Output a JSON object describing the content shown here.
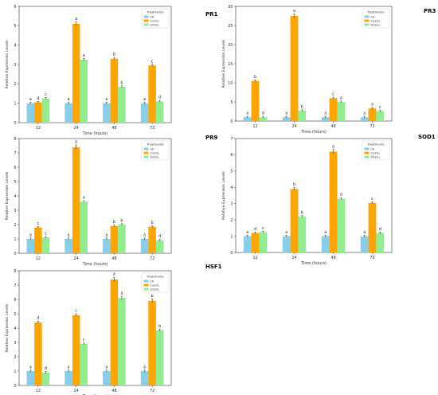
{
  "colors": {
    "CK": "#87ceeb",
    "CuSO4": "#ffa500",
    "ZnSO4": "#90ee90"
  },
  "chart_data": [
    {
      "type": "bar",
      "title": "PR1",
      "xlabel": "Time (hours)",
      "ylabel": "Relative Expression Levels",
      "categories": [
        "12",
        "24",
        "48",
        "72"
      ],
      "ylim": [
        0,
        6
      ],
      "yticks": [
        0,
        1,
        2,
        3,
        4,
        5,
        6
      ],
      "legend": {
        "title": "Treatments",
        "position": "top-right"
      },
      "series": [
        {
          "name": "CK",
          "values": [
            1.0,
            1.0,
            1.0,
            1.0
          ],
          "letters": [
            "a",
            "a",
            "a",
            "a"
          ]
        },
        {
          "name": "CuSO₄",
          "values": [
            1.05,
            5.1,
            3.3,
            2.95
          ],
          "letters": [
            "d",
            "a",
            "b",
            "c"
          ]
        },
        {
          "name": "ZnSO₄",
          "values": [
            1.25,
            3.25,
            1.85,
            1.1
          ],
          "letters": [
            "c",
            "a",
            "b",
            "d"
          ]
        }
      ]
    },
    {
      "type": "bar",
      "title": "PR3",
      "xlabel": "Time (hours)",
      "ylabel": "Relative Expression Levels",
      "categories": [
        "12",
        "24",
        "48",
        "72"
      ],
      "ylim": [
        0,
        30
      ],
      "yticks": [
        0,
        5,
        10,
        15,
        20,
        25,
        30
      ],
      "legend": {
        "title": "Treatments",
        "position": "top-right"
      },
      "series": [
        {
          "name": "CK",
          "values": [
            1.0,
            1.0,
            1.0,
            1.0
          ],
          "letters": [
            "a",
            "a",
            "a",
            "a"
          ]
        },
        {
          "name": "CuSO₄",
          "values": [
            10.5,
            27.5,
            6.0,
            3.3
          ],
          "letters": [
            "b",
            "a",
            "c",
            "a"
          ]
        },
        {
          "name": "ZnSO₄",
          "values": [
            1.0,
            2.7,
            5.0,
            2.6
          ],
          "letters": [
            "d",
            "b",
            "a",
            "c"
          ]
        }
      ]
    },
    {
      "type": "bar",
      "title": "PR9",
      "xlabel": "Time (hours)",
      "ylabel": "Relative Expression Levels",
      "categories": [
        "12",
        "24",
        "48",
        "72"
      ],
      "ylim": [
        0,
        8
      ],
      "yticks": [
        0,
        1,
        2,
        3,
        4,
        5,
        6,
        7,
        8
      ],
      "legend": {
        "title": "Treatments",
        "position": "top-right"
      },
      "series": [
        {
          "name": "CK",
          "values": [
            1.0,
            1.0,
            1.0,
            1.0
          ],
          "letters": [
            "a",
            "a",
            "a",
            "a"
          ]
        },
        {
          "name": "CuSO₄",
          "values": [
            1.8,
            7.4,
            1.9,
            1.85
          ],
          "letters": [
            "c",
            "a",
            "b",
            "b"
          ]
        },
        {
          "name": "ZnSO₄",
          "values": [
            1.1,
            3.6,
            2.0,
            0.9
          ],
          "letters": [
            "c",
            "a",
            "b",
            "d"
          ]
        }
      ]
    },
    {
      "type": "bar",
      "title": "SOD1",
      "xlabel": "Time (hours)",
      "ylabel": "Relative Expression Levels",
      "categories": [
        "12",
        "24",
        "48",
        "72"
      ],
      "ylim": [
        0,
        7
      ],
      "yticks": [
        0,
        1,
        2,
        3,
        4,
        5,
        6,
        7
      ],
      "legend": {
        "title": "Treatments",
        "position": "top-right"
      },
      "series": [
        {
          "name": "CK",
          "values": [
            1.0,
            1.0,
            1.0,
            1.0
          ],
          "letters": [
            "a",
            "a",
            "a",
            "a"
          ]
        },
        {
          "name": "CuSO₄",
          "values": [
            1.2,
            3.9,
            6.2,
            3.05
          ],
          "letters": [
            "d",
            "b",
            "a",
            "c"
          ]
        },
        {
          "name": "ZnSO₄",
          "values": [
            1.25,
            2.2,
            3.3,
            1.2
          ],
          "letters": [
            "c",
            "b",
            "a",
            "d"
          ]
        }
      ]
    },
    {
      "type": "bar",
      "title": "HSF1",
      "xlabel": "Time (hours)",
      "ylabel": "Relative Expression Levels",
      "categories": [
        "12",
        "24",
        "48",
        "72"
      ],
      "ylim": [
        0,
        8
      ],
      "yticks": [
        0,
        1,
        2,
        3,
        4,
        5,
        6,
        7,
        8
      ],
      "legend": {
        "title": "Treatments",
        "position": "top-right"
      },
      "series": [
        {
          "name": "CK",
          "values": [
            1.0,
            1.0,
            1.0,
            1.0
          ],
          "letters": [
            "a",
            "a",
            "a",
            "a"
          ]
        },
        {
          "name": "CuSO₄",
          "values": [
            4.4,
            4.9,
            7.4,
            5.9
          ],
          "letters": [
            "d",
            "c",
            "a",
            "b"
          ]
        },
        {
          "name": "ZnSO₄",
          "values": [
            0.9,
            2.9,
            6.1,
            3.85
          ],
          "letters": [
            "d",
            "c",
            "a",
            "b"
          ]
        }
      ]
    }
  ]
}
